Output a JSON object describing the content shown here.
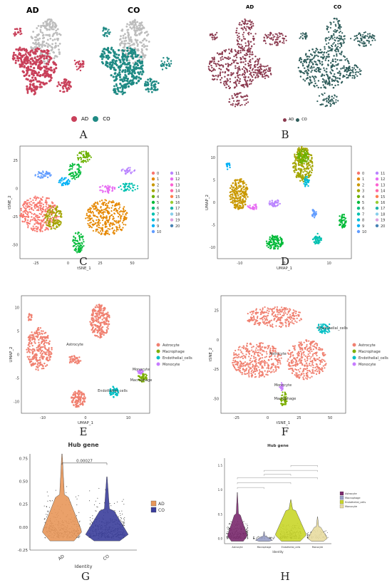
{
  "panel_letters": {
    "A": "A",
    "B": "B",
    "C": "C",
    "D": "D",
    "E": "E",
    "F": "F",
    "G": "G",
    "H": "H"
  },
  "panelA": {
    "title_ad": "AD",
    "title_co": "CO",
    "legend": [
      "AD",
      "CO"
    ],
    "colors": {
      "AD": "#c9405a",
      "CO": "#1f8a84",
      "other": "#bdbdbd"
    }
  },
  "panelB": {
    "title_ad": "AD",
    "title_co": "CO",
    "legend": [
      "AD",
      "CO"
    ],
    "colors": {
      "AD": "#8b3a4f",
      "CO": "#2f5d5b"
    }
  },
  "panelC": {
    "xlabel": "tSNE_1",
    "ylabel": "tSNE_2",
    "xticks": [
      "-25",
      "0",
      "25",
      "50"
    ],
    "yticks": [
      "25",
      "0",
      "-25",
      "-50"
    ],
    "clusters": [
      "0",
      "1",
      "2",
      "3",
      "4",
      "5",
      "6",
      "7",
      "8",
      "9",
      "10",
      "11",
      "12",
      "13",
      "14",
      "15",
      "16",
      "17",
      "18",
      "19",
      "20"
    ]
  },
  "panelD": {
    "xlabel": "UMAP_1",
    "ylabel": "UMAP_2",
    "xticks": [
      "-10",
      "0",
      "10"
    ],
    "yticks": [
      "10",
      "5",
      "0",
      "-5",
      "-10"
    ],
    "clusters": [
      "0",
      "1",
      "2",
      "3",
      "4",
      "5",
      "6",
      "7",
      "8",
      "9",
      "10",
      "11",
      "12",
      "13",
      "14",
      "15",
      "16",
      "17",
      "18",
      "19",
      "20"
    ]
  },
  "panelE": {
    "xlabel": "UMAP_1",
    "ylabel": "UMAP_2",
    "xticks": [
      "-10",
      "0",
      "10"
    ],
    "yticks": [
      "10",
      "5",
      "0",
      "-5",
      "-10"
    ],
    "labels": {
      "astro": "Astrocyte",
      "mono": "Monocyte",
      "macro": "Macrophage",
      "endo": "Endothelial_cells"
    },
    "legend": [
      "Astrocyte",
      "Macrophage",
      "Endothelial_cells",
      "Monocyte"
    ]
  },
  "panelF": {
    "xlabel": "tSNE_1",
    "ylabel": "tSNE_2",
    "xticks": [
      "-25",
      "0",
      "25",
      "50"
    ],
    "yticks": [
      "25",
      "0",
      "-25",
      "-50"
    ],
    "labels": {
      "astro": "Astrocyte",
      "mono": "Monocyte",
      "macro": "Macrophage",
      "endo": "Endothelial_cells"
    },
    "legend": [
      "Astrocyte",
      "Macrophage",
      "Endothelial_cells",
      "Monocyte"
    ]
  },
  "cell_colors": {
    "Astrocyte": "#f08070",
    "Macrophage": "#7cae00",
    "Endothelial_cells": "#00bfc4",
    "Monocyte": "#c77cff"
  },
  "chart_data": [
    {
      "type": "violin",
      "panel": "G",
      "title": "Hub gene",
      "xlabel": "Identity",
      "ylabel": "",
      "categories": [
        "AD",
        "CO"
      ],
      "yticks": [
        "0.75",
        "0.50",
        "0.25",
        "0.00",
        "-0.25"
      ],
      "ylim": [
        -0.25,
        0.8
      ],
      "annotation": "0.00027",
      "legend": [
        "AD",
        "CO"
      ],
      "colors": {
        "AD": "#e8975a",
        "CO": "#3b3f9c"
      }
    },
    {
      "type": "violin",
      "panel": "H",
      "title": "Hub gene",
      "xlabel": "Identity",
      "categories": [
        "Astrocyte",
        "Macrophage",
        "Endothelial_cells",
        "Monocyte"
      ],
      "yticks": [
        "1.5",
        "1.0",
        "0.5",
        "0.0"
      ],
      "legend": [
        "Astrocyte",
        "Macrophage",
        "Endothelial_cells",
        "Monocyte"
      ],
      "colors": {
        "Astrocyte": "#7b2a6e",
        "Macrophage": "#9aa0c8",
        "Endothelial_cells": "#c9d62a",
        "Monocyte": "#e8dca0"
      }
    }
  ]
}
